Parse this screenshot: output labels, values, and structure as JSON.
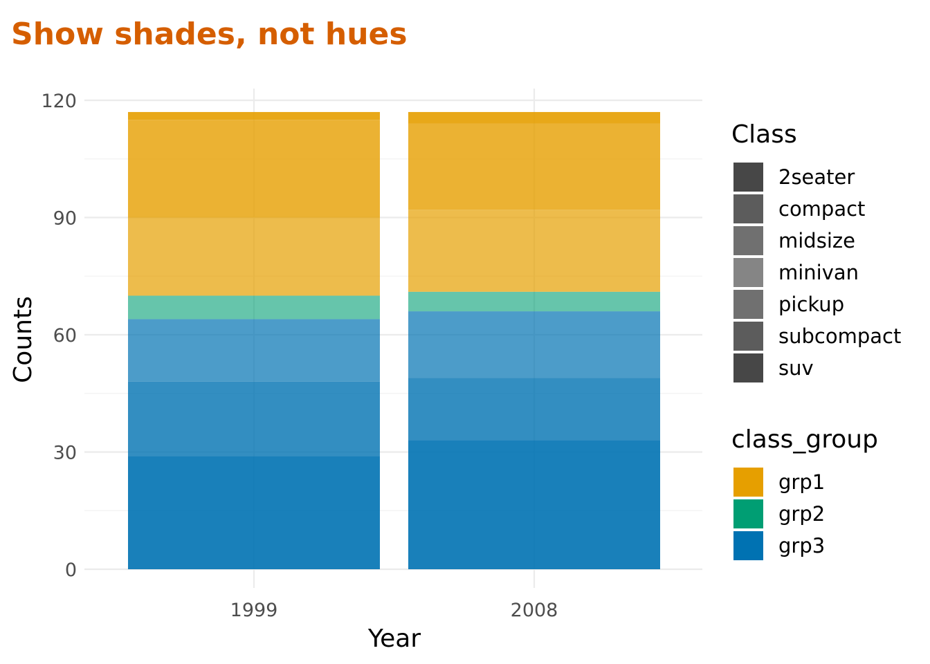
{
  "chart_data": {
    "type": "bar",
    "stacked": true,
    "title": "Show shades, not hues",
    "xlabel": "Year",
    "ylabel": "Counts",
    "categories": [
      "1999",
      "2008"
    ],
    "ylim": [
      0,
      125
    ],
    "yticks": [
      0,
      30,
      60,
      90,
      120
    ],
    "grid": true,
    "series": [
      {
        "name": "2seater",
        "group": "grp1",
        "values": [
          2,
          3
        ]
      },
      {
        "name": "compact",
        "group": "grp1",
        "values": [
          25,
          22
        ]
      },
      {
        "name": "midsize",
        "group": "grp1",
        "values": [
          20,
          21
        ]
      },
      {
        "name": "minivan",
        "group": "grp2",
        "values": [
          6,
          5
        ]
      },
      {
        "name": "pickup",
        "group": "grp3",
        "values": [
          16,
          17
        ]
      },
      {
        "name": "subcompact",
        "group": "grp3",
        "values": [
          19,
          16
        ]
      },
      {
        "name": "suv",
        "group": "grp3",
        "values": [
          29,
          33
        ]
      }
    ],
    "legends": [
      {
        "title": "Class",
        "items": [
          "2seater",
          "compact",
          "midsize",
          "minivan",
          "pickup",
          "subcompact",
          "suv"
        ],
        "alphas": [
          0.9,
          0.8,
          0.7,
          0.6,
          0.7,
          0.8,
          0.9
        ]
      },
      {
        "title": "class_group",
        "items": [
          "grp1",
          "grp2",
          "grp3"
        ],
        "colors": [
          "#e69f00",
          "#009e73",
          "#0072b2"
        ]
      }
    ],
    "legend_position": "right"
  }
}
